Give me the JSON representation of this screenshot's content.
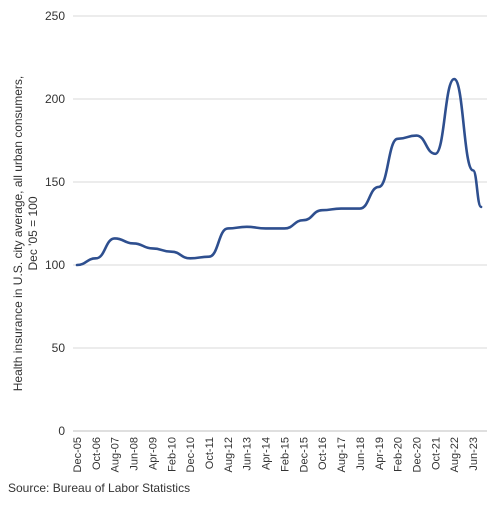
{
  "chart_data": {
    "type": "line",
    "ylabel": "Health insurance in U.S. city average, all urban consumers, Dec '05 = 100",
    "ylabel_lines": [
      "Health insurance in U.S. city average, all urban consumers,",
      "Dec '05 = 100"
    ],
    "xlabel": "",
    "ylim": [
      0,
      250
    ],
    "y_ticks": [
      "0",
      "50",
      "100",
      "150",
      "200",
      "250"
    ],
    "x_tick_labels": [
      "Dec-05",
      "Oct-06",
      "Aug-07",
      "Jun-08",
      "Apr-09",
      "Feb-10",
      "Dec-10",
      "Oct-11",
      "Aug-12",
      "Jun-13",
      "Apr-14",
      "Feb-15",
      "Dec-15",
      "Oct-16",
      "Aug-17",
      "Jun-18",
      "Apr-19",
      "Feb-20",
      "Dec-20",
      "Oct-21",
      "Aug-22",
      "Jun-23"
    ],
    "grid": "horizontal",
    "line_color": "#2e4f8f",
    "series": [
      {
        "x": [
          "Dec-05",
          "Oct-06",
          "Aug-07",
          "Jun-08",
          "Apr-09",
          "Feb-10",
          "Dec-10",
          "Oct-11",
          "Aug-12",
          "Jun-13",
          "Apr-14",
          "Feb-15",
          "Dec-15",
          "Oct-16",
          "Aug-17",
          "Jun-18",
          "Apr-19",
          "Feb-20",
          "Dec-20",
          "Oct-21",
          "Aug-22",
          "Jun-23",
          "Oct-23"
        ],
        "values": [
          100,
          104,
          116,
          113,
          110,
          108,
          104,
          105,
          122,
          123,
          122,
          122,
          127,
          133,
          134,
          134,
          147,
          176,
          178,
          167,
          212,
          157,
          135
        ]
      }
    ]
  },
  "source": "Source: Bureau of Labor Statistics"
}
